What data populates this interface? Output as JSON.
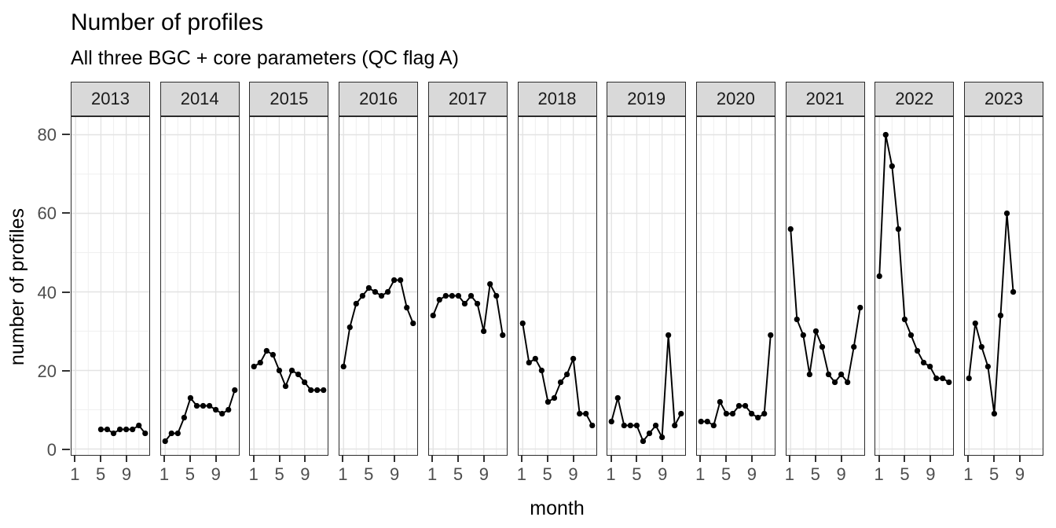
{
  "title": "Number of profiles",
  "subtitle": "All three BGC + core parameters (QC flag A)",
  "chart_data": {
    "type": "line",
    "title": "Number of profiles",
    "subtitle": "All three BGC + core parameters (QC flag A)",
    "xlabel": "month",
    "ylabel": "number of profiles",
    "legend": "none",
    "x_ticks": [
      1,
      5,
      9
    ],
    "y_ticks": [
      0,
      20,
      40,
      60,
      80
    ],
    "xlim": [
      0.35,
      12.65
    ],
    "ylim": [
      -1.5,
      84.5
    ],
    "grid": "major and minor, light gray",
    "point_color": "#000000",
    "line_color": "#000000",
    "strip_bg": "#d9d9d9",
    "facets": [
      {
        "year": "2013",
        "months": [
          5,
          6,
          7,
          8,
          9,
          10,
          11,
          12
        ],
        "values": [
          5,
          5,
          4,
          5,
          5,
          5,
          6,
          4
        ]
      },
      {
        "year": "2014",
        "months": [
          1,
          2,
          3,
          4,
          5,
          6,
          7,
          8,
          9,
          10,
          11,
          12
        ],
        "values": [
          2,
          4,
          4,
          8,
          13,
          11,
          11,
          11,
          10,
          9,
          10,
          15
        ]
      },
      {
        "year": "2015",
        "months": [
          1,
          2,
          3,
          4,
          5,
          6,
          7,
          8,
          9,
          10,
          11,
          12
        ],
        "values": [
          21,
          22,
          25,
          24,
          20,
          16,
          20,
          19,
          17,
          15,
          15,
          15
        ]
      },
      {
        "year": "2016",
        "months": [
          1,
          2,
          3,
          4,
          5,
          6,
          7,
          8,
          9,
          10,
          11,
          12
        ],
        "values": [
          21,
          31,
          37,
          39,
          41,
          40,
          39,
          40,
          43,
          43,
          36,
          32
        ]
      },
      {
        "year": "2017",
        "months": [
          1,
          2,
          3,
          4,
          5,
          6,
          7,
          8,
          9,
          10,
          11,
          12
        ],
        "values": [
          34,
          38,
          39,
          39,
          39,
          37,
          39,
          37,
          30,
          42,
          39,
          29
        ]
      },
      {
        "year": "2018",
        "months": [
          1,
          2,
          3,
          4,
          5,
          6,
          7,
          8,
          9,
          10,
          11,
          12
        ],
        "values": [
          32,
          22,
          23,
          20,
          12,
          13,
          17,
          19,
          23,
          9,
          9,
          6
        ]
      },
      {
        "year": "2019",
        "months": [
          1,
          2,
          3,
          4,
          5,
          6,
          7,
          8,
          9,
          10,
          11,
          12
        ],
        "values": [
          7,
          13,
          6,
          6,
          6,
          2,
          4,
          6,
          3,
          29,
          6,
          9
        ]
      },
      {
        "year": "2020",
        "months": [
          1,
          2,
          3,
          4,
          5,
          6,
          7,
          8,
          9,
          10,
          11,
          12
        ],
        "values": [
          7,
          7,
          6,
          12,
          9,
          9,
          11,
          11,
          9,
          8,
          9,
          29
        ]
      },
      {
        "year": "2021",
        "months": [
          1,
          2,
          3,
          4,
          5,
          6,
          7,
          8,
          9,
          10,
          11,
          12
        ],
        "values": [
          56,
          33,
          29,
          19,
          30,
          26,
          19,
          17,
          19,
          17,
          26,
          36
        ]
      },
      {
        "year": "2022",
        "months": [
          1,
          2,
          3,
          4,
          5,
          6,
          7,
          8,
          9,
          10,
          11,
          12
        ],
        "values": [
          44,
          80,
          72,
          56,
          33,
          29,
          25,
          22,
          21,
          18,
          18,
          17
        ]
      },
      {
        "year": "2023",
        "months": [
          1,
          2,
          3,
          4,
          5,
          6,
          7,
          8
        ],
        "values": [
          18,
          32,
          26,
          21,
          9,
          34,
          60,
          40
        ]
      }
    ]
  },
  "colors": {
    "major_grid": "#e3e3e3",
    "minor_grid": "#f0f0f0",
    "axis_text": "#4d4d4d",
    "tick_mark": "#333333",
    "panel_border": "#2b2b2b"
  }
}
